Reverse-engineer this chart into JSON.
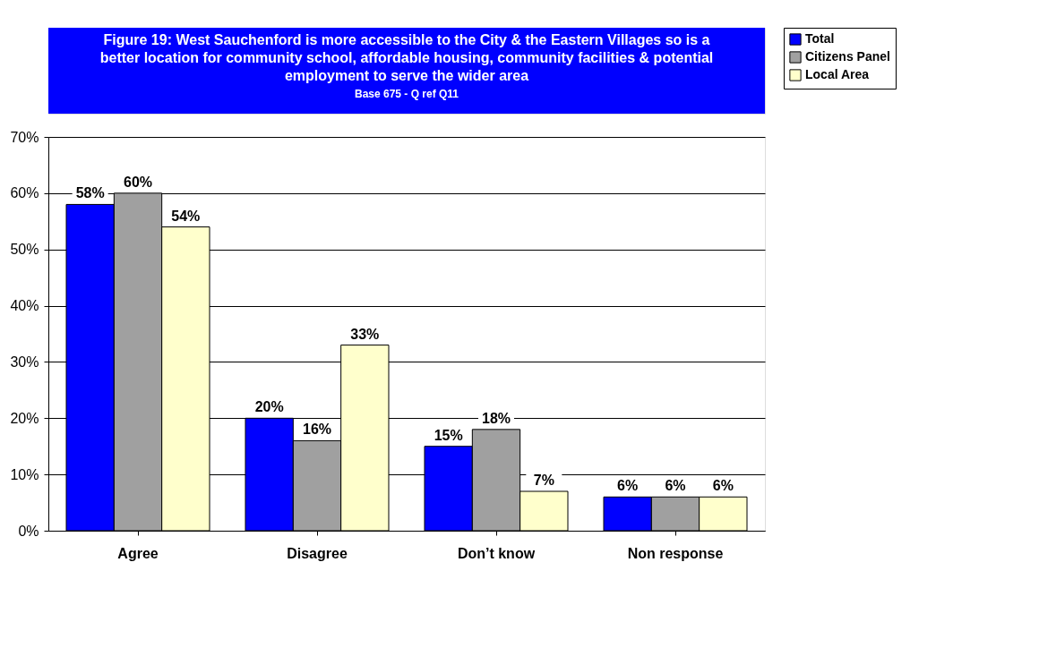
{
  "chart_data": {
    "type": "bar",
    "title": "Figure 19: West Sauchenford is more accessible to the City & the Eastern Villages so is a better location for community school, affordable housing, community facilities & potential employment to serve the wider area",
    "subtitle": "Base 675 - Q ref Q11",
    "categories": [
      "Agree",
      "Disagree",
      "Don’t know",
      "Non response"
    ],
    "series": [
      {
        "name": "Total",
        "color": "#0000ff",
        "values": [
          58,
          20,
          15,
          6
        ],
        "value_labels": [
          "58%",
          "20%",
          "15%",
          "6%"
        ]
      },
      {
        "name": "Citizens Panel",
        "color": "#a0a0a0",
        "values": [
          60,
          16,
          18,
          6
        ],
        "value_labels": [
          "60%",
          "16%",
          "18%",
          "6%"
        ]
      },
      {
        "name": "Local Area",
        "color": "#ffffcc",
        "values": [
          54,
          33,
          7,
          6
        ],
        "value_labels": [
          "54%",
          "33%",
          "7%",
          "6%"
        ]
      }
    ],
    "ylim": [
      0,
      70
    ],
    "yticks": [
      {
        "value": 0,
        "label": "0%"
      },
      {
        "value": 10,
        "label": "10%"
      },
      {
        "value": 20,
        "label": "20%"
      },
      {
        "value": 30,
        "label": "30%"
      },
      {
        "value": 40,
        "label": "40%"
      },
      {
        "value": 50,
        "label": "50%"
      },
      {
        "value": 60,
        "label": "60%"
      },
      {
        "value": 70,
        "label": "70%"
      }
    ],
    "grid": "y",
    "legend": "right"
  }
}
